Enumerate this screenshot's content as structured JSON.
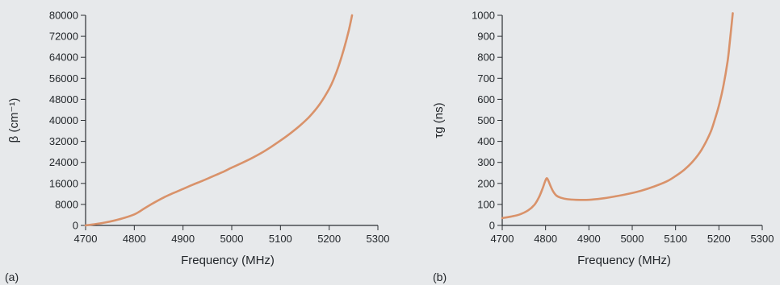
{
  "chart_data": [
    {
      "type": "line",
      "panel_label": "(a)",
      "xlabel": "Frequency (MHz)",
      "ylabel": "β (cm⁻¹)",
      "xlim": [
        4700,
        5300
      ],
      "ylim": [
        0,
        80000
      ],
      "xticks": [
        4700,
        4800,
        4900,
        5000,
        5100,
        5200,
        5300
      ],
      "yticks": [
        0,
        8000,
        16000,
        24000,
        32000,
        40000,
        48000,
        56000,
        64000,
        72000,
        80000
      ],
      "color": "#d9926a",
      "grid": false,
      "series": [
        {
          "x": [
            4700,
            4720,
            4740,
            4760,
            4780,
            4800,
            4810,
            4820,
            4840,
            4860,
            4880,
            4900,
            4920,
            4940,
            4960,
            4980,
            5000,
            5020,
            5040,
            5060,
            5080,
            5100,
            5120,
            5140,
            5160,
            5180,
            5200,
            5210,
            5220,
            5230,
            5240,
            5247
          ],
          "y": [
            0,
            500,
            1100,
            1900,
            2900,
            4200,
            5200,
            6400,
            8600,
            10600,
            12300,
            13900,
            15500,
            17000,
            18600,
            20200,
            22000,
            23700,
            25500,
            27500,
            29800,
            32300,
            35000,
            38000,
            41500,
            46000,
            52000,
            56000,
            61000,
            67000,
            74000,
            80000
          ]
        }
      ]
    },
    {
      "type": "line",
      "panel_label": "(b)",
      "xlabel": "Frequency (MHz)",
      "ylabel": "τg (ns)",
      "xlim": [
        4700,
        5300
      ],
      "ylim": [
        0,
        1000
      ],
      "xticks": [
        4700,
        4800,
        4900,
        5000,
        5100,
        5200,
        5300
      ],
      "yticks": [
        0,
        100,
        200,
        300,
        400,
        500,
        600,
        700,
        800,
        900,
        1000
      ],
      "color": "#d9926a",
      "grid": false,
      "series": [
        {
          "x": [
            4700,
            4720,
            4740,
            4760,
            4775,
            4785,
            4793,
            4799,
            4803,
            4807,
            4812,
            4818,
            4825,
            4835,
            4850,
            4870,
            4900,
            4930,
            4960,
            4990,
            5020,
            5050,
            5080,
            5100,
            5120,
            5140,
            5160,
            5180,
            5190,
            5200,
            5210,
            5220,
            5225,
            5232
          ],
          "y": [
            35,
            42,
            52,
            72,
            100,
            135,
            175,
            210,
            225,
            210,
            185,
            160,
            142,
            132,
            125,
            122,
            122,
            128,
            138,
            150,
            165,
            185,
            210,
            235,
            265,
            305,
            360,
            440,
            500,
            570,
            660,
            780,
            870,
            1010
          ]
        }
      ]
    }
  ]
}
